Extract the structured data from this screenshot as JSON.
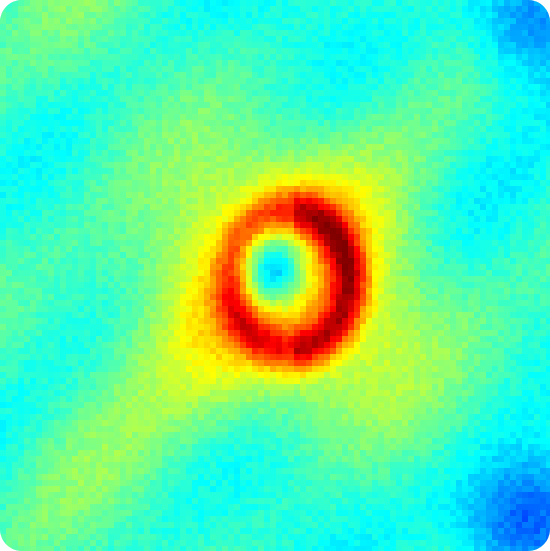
{
  "chart_data": {
    "type": "heatmap",
    "title": "",
    "xlabel": "",
    "ylabel": "",
    "colormap": "jet",
    "value_range": [
      0,
      1
    ],
    "grid": false,
    "colorbar": false,
    "shape": "ring-shaped peak around a low-valued central core",
    "cell_size_px": 6,
    "features": [
      {
        "name": "background",
        "value": 0.42
      },
      {
        "name": "central-core",
        "cx": 0.5,
        "cy": 0.49,
        "value": 0.33
      },
      {
        "name": "ring-peak",
        "cx": 0.53,
        "cy": 0.51,
        "rx": 0.105,
        "ry": 0.125,
        "value": 0.96
      },
      {
        "name": "outer-halo",
        "cx": 0.51,
        "cy": 0.52,
        "rx": 0.32,
        "ry": 0.27,
        "value": 0.72
      },
      {
        "name": "low-corner-bottom-right",
        "cx": 0.96,
        "cy": 0.94,
        "value": 0.22
      },
      {
        "name": "low-corner-top-right",
        "cx": 0.98,
        "cy": 0.03,
        "value": 0.27
      }
    ]
  }
}
